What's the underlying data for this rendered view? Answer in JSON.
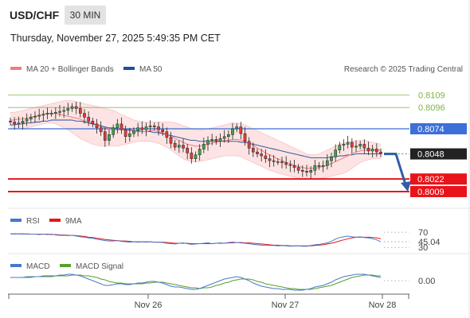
{
  "header": {
    "symbol": "USD/CHF",
    "timeframe": "30 MIN",
    "datetime": "Thursday, November 27, 2025 5:49:35 PM CET"
  },
  "legend": {
    "ma20": "MA 20 + Bollinger Bands",
    "ma50": "MA 50",
    "credit": "Research © 2025 Trading Central",
    "ma20_color": "#f47c7c",
    "ma50_color": "#1f4e9c"
  },
  "chart_data": {
    "type": "candlestick",
    "ylim": [
      0.7995,
      0.8125
    ],
    "x_ticks": [
      "Nov 26",
      "Nov 27",
      "Nov 28"
    ],
    "price_levels": [
      {
        "value": "0.8109",
        "color": "#7db446",
        "style": "text"
      },
      {
        "value": "0.8096",
        "color": "#7db446",
        "style": "text"
      },
      {
        "value": "0.8074",
        "color": "#3c6fd8",
        "style": "box"
      },
      {
        "value": "0.8048",
        "color": "#222222",
        "style": "box"
      },
      {
        "value": "0.8022",
        "color": "#e8141a",
        "style": "box"
      },
      {
        "value": "0.8009",
        "color": "#e8141a",
        "style": "box"
      }
    ],
    "current_price": 0.8048,
    "forecast_target": 0.8009,
    "close": [
      0.8081,
      0.8079,
      0.808,
      0.8082,
      0.8084,
      0.8086,
      0.8087,
      0.8088,
      0.8089,
      0.809,
      0.809,
      0.8091,
      0.8092,
      0.8093,
      0.8095,
      0.8097,
      0.8095,
      0.809,
      0.8086,
      0.8082,
      0.8079,
      0.8075,
      0.8071,
      0.8062,
      0.8068,
      0.8075,
      0.8079,
      0.8073,
      0.8066,
      0.8069,
      0.8072,
      0.8075,
      0.8073,
      0.8076,
      0.8077,
      0.8076,
      0.8073,
      0.8071,
      0.8065,
      0.8059,
      0.8055,
      0.8057,
      0.8054,
      0.8049,
      0.8043,
      0.8047,
      0.8053,
      0.8058,
      0.8062,
      0.8063,
      0.8061,
      0.8064,
      0.8066,
      0.8068,
      0.8074,
      0.8076,
      0.8069,
      0.8061,
      0.8054,
      0.805,
      0.8048,
      0.8046,
      0.8043,
      0.8041,
      0.804,
      0.804,
      0.8039,
      0.8037,
      0.8036,
      0.8034,
      0.8031,
      0.803,
      0.8029,
      0.8031,
      0.8036,
      0.8035,
      0.8036,
      0.8041,
      0.8045,
      0.8052,
      0.8057,
      0.8058,
      0.806,
      0.8055,
      0.8056,
      0.8058,
      0.8054,
      0.8051,
      0.8053,
      0.805,
      0.8048
    ],
    "ma20": [
      0.8083,
      0.8083,
      0.8084,
      0.8084,
      0.8085,
      0.8086,
      0.8087,
      0.8088,
      0.8089,
      0.809,
      0.809,
      0.809,
      0.8089,
      0.8088,
      0.8087,
      0.8086,
      0.8085,
      0.8084,
      0.8082,
      0.8081,
      0.808,
      0.8078,
      0.8076,
      0.8075,
      0.8074,
      0.8073,
      0.8073,
      0.8073,
      0.8073,
      0.8072,
      0.8072,
      0.8071,
      0.8071,
      0.8071,
      0.8072,
      0.8072,
      0.8071,
      0.807,
      0.8068,
      0.8066,
      0.8064,
      0.8062,
      0.806,
      0.8058,
      0.8057,
      0.8056,
      0.8056,
      0.8057,
      0.8058,
      0.8059,
      0.806,
      0.8061,
      0.8062,
      0.8062,
      0.8063,
      0.8063,
      0.8062,
      0.8061,
      0.8059,
      0.8057,
      0.8054,
      0.8052,
      0.8049,
      0.8047,
      0.8045,
      0.8043,
      0.8041,
      0.8039,
      0.8038,
      0.8036,
      0.8035,
      0.8034,
      0.8033,
      0.8033,
      0.8033,
      0.8034,
      0.8035,
      0.8036,
      0.8038,
      0.804,
      0.8042,
      0.8044,
      0.8046,
      0.8048,
      0.805,
      0.8051,
      0.8052,
      0.8052,
      0.8052,
      0.8052,
      0.8052
    ],
    "bb_upper": [
      0.8091,
      0.8091,
      0.8092,
      0.8093,
      0.8094,
      0.8095,
      0.8096,
      0.8097,
      0.8098,
      0.8099,
      0.81,
      0.8101,
      0.8102,
      0.8103,
      0.8103,
      0.8103,
      0.8102,
      0.8101,
      0.81,
      0.8099,
      0.8098,
      0.8097,
      0.8096,
      0.8095,
      0.8094,
      0.8093,
      0.8091,
      0.8089,
      0.8087,
      0.8085,
      0.8083,
      0.8082,
      0.8081,
      0.8081,
      0.8081,
      0.8081,
      0.8081,
      0.8081,
      0.8081,
      0.8081,
      0.808,
      0.8079,
      0.8077,
      0.8076,
      0.8074,
      0.8073,
      0.8073,
      0.8073,
      0.8074,
      0.8075,
      0.8076,
      0.8077,
      0.8078,
      0.8079,
      0.808,
      0.808,
      0.8079,
      0.8078,
      0.8076,
      0.8074,
      0.8072,
      0.807,
      0.8068,
      0.8066,
      0.8064,
      0.8062,
      0.806,
      0.8058,
      0.8056,
      0.8054,
      0.8052,
      0.805,
      0.8048,
      0.8047,
      0.8047,
      0.8048,
      0.805,
      0.8052,
      0.8054,
      0.8056,
      0.8058,
      0.8059,
      0.806,
      0.8061,
      0.8062,
      0.8062,
      0.8062,
      0.8061,
      0.806,
      0.8059,
      0.8058
    ],
    "bb_lower": [
      0.8074,
      0.8074,
      0.8074,
      0.8074,
      0.8075,
      0.8076,
      0.8077,
      0.8078,
      0.8079,
      0.808,
      0.808,
      0.8079,
      0.8077,
      0.8075,
      0.8073,
      0.807,
      0.8067,
      0.8064,
      0.8062,
      0.806,
      0.8058,
      0.8057,
      0.8056,
      0.8056,
      0.8056,
      0.8056,
      0.8056,
      0.8057,
      0.8058,
      0.8059,
      0.806,
      0.8061,
      0.8061,
      0.8061,
      0.8061,
      0.806,
      0.8059,
      0.8057,
      0.8055,
      0.8052,
      0.8049,
      0.8046,
      0.8043,
      0.8041,
      0.804,
      0.804,
      0.804,
      0.8041,
      0.8042,
      0.8043,
      0.8044,
      0.8045,
      0.8046,
      0.8046,
      0.8046,
      0.8046,
      0.8045,
      0.8043,
      0.8041,
      0.8039,
      0.8037,
      0.8035,
      0.8033,
      0.8031,
      0.803,
      0.8028,
      0.8027,
      0.8026,
      0.8025,
      0.8024,
      0.8023,
      0.8022,
      0.8022,
      0.8022,
      0.8022,
      0.8022,
      0.8023,
      0.8024,
      0.8025,
      0.8026,
      0.8027,
      0.8028,
      0.803,
      0.8033,
      0.8036,
      0.8039,
      0.8041,
      0.8042,
      0.8043,
      0.8043,
      0.8043
    ],
    "ma50": [
      0.8078,
      0.8078,
      0.8079,
      0.8079,
      0.808,
      0.808,
      0.8081,
      0.8081,
      0.8082,
      0.8082,
      0.8083,
      0.8083,
      0.8083,
      0.8083,
      0.8083,
      0.8083,
      0.8082,
      0.8082,
      0.8081,
      0.808,
      0.8079,
      0.8078,
      0.8077,
      0.8076,
      0.8075,
      0.8075,
      0.8074,
      0.8074,
      0.8073,
      0.8073,
      0.8072,
      0.8072,
      0.8071,
      0.8071,
      0.8071,
      0.807,
      0.807,
      0.8069,
      0.8068,
      0.8067,
      0.8066,
      0.8065,
      0.8064,
      0.8063,
      0.8062,
      0.8062,
      0.8061,
      0.8061,
      0.8061,
      0.8061,
      0.8061,
      0.8061,
      0.8061,
      0.8061,
      0.8061,
      0.8061,
      0.806,
      0.806,
      0.8059,
      0.8058,
      0.8057,
      0.8056,
      0.8055,
      0.8054,
      0.8053,
      0.8052,
      0.8051,
      0.805,
      0.8049,
      0.8048,
      0.8047,
      0.8046,
      0.8045,
      0.8044,
      0.8044,
      0.8044,
      0.8044,
      0.8044,
      0.8045,
      0.8045,
      0.8046,
      0.8046,
      0.8047,
      0.8047,
      0.8048,
      0.8048,
      0.8048,
      0.8048,
      0.8048,
      0.8048,
      0.8048
    ],
    "rsi": {
      "legend": [
        "RSI",
        "9MA"
      ],
      "colors": [
        "#4a78c8",
        "#e8141a"
      ],
      "levels": [
        "70",
        "45.04",
        "30"
      ],
      "last": 45.04,
      "ylim": [
        20,
        85
      ],
      "values": [
        66,
        65,
        66,
        65,
        66,
        65,
        65,
        64,
        65,
        64,
        65,
        63,
        62,
        62,
        61,
        62,
        60,
        58,
        57,
        55,
        54,
        52,
        50,
        48,
        47,
        47,
        48,
        46,
        45,
        44,
        45,
        44,
        45,
        44,
        45,
        44,
        44,
        43,
        41,
        40,
        39,
        41,
        42,
        40,
        38,
        39,
        40,
        41,
        42,
        40,
        41,
        42,
        41,
        43,
        44,
        43,
        42,
        41,
        40,
        38,
        37,
        36,
        36,
        35,
        35,
        34,
        35,
        34,
        33,
        34,
        34,
        33,
        33,
        35,
        37,
        38,
        40,
        42,
        46,
        52,
        56,
        58,
        60,
        58,
        57,
        58,
        56,
        55,
        53,
        50,
        45
      ],
      "ma": [
        66,
        66,
        66,
        66,
        65,
        65,
        65,
        65,
        65,
        65,
        64,
        64,
        63,
        63,
        62,
        62,
        61,
        60,
        59,
        57,
        56,
        54,
        53,
        51,
        50,
        49,
        48,
        47,
        47,
        46,
        45,
        45,
        45,
        45,
        45,
        44,
        44,
        44,
        43,
        42,
        41,
        41,
        41,
        41,
        40,
        40,
        40,
        40,
        40,
        40,
        41,
        41,
        41,
        42,
        42,
        43,
        43,
        42,
        42,
        41,
        40,
        39,
        38,
        37,
        36,
        36,
        35,
        35,
        34,
        34,
        34,
        34,
        34,
        34,
        35,
        36,
        37,
        39,
        41,
        44,
        47,
        50,
        53,
        55,
        57,
        57,
        57,
        57,
        56,
        55,
        53
      ]
    },
    "macd": {
      "legend": [
        "MACD",
        "MACD Signal"
      ],
      "colors": [
        "#4a78c8",
        "#5aa02c"
      ],
      "zero_label": "0.00",
      "ylim": [
        -0.0015,
        0.0011
      ],
      "values": [
        0.0004,
        0.0004,
        0.0004,
        0.0004,
        0.0005,
        0.0005,
        0.0005,
        0.0005,
        0.0006,
        0.0006,
        0.0006,
        0.0006,
        0.0007,
        0.0007,
        0.0008,
        0.0008,
        0.0007,
        0.0006,
        0.0004,
        0.0002,
        0.0,
        -0.0002,
        -0.0004,
        -0.0006,
        -0.0006,
        -0.0005,
        -0.0004,
        -0.0004,
        -0.0005,
        -0.0005,
        -0.0004,
        -0.0003,
        -0.0003,
        -0.0002,
        -0.0001,
        -0.0001,
        -0.0002,
        -0.0003,
        -0.0005,
        -0.0007,
        -0.0008,
        -0.0008,
        -0.0009,
        -0.001,
        -0.0011,
        -0.0011,
        -0.001,
        -0.0008,
        -0.0006,
        -0.0004,
        -0.0002,
        0.0,
        0.0002,
        0.0003,
        0.0004,
        0.0005,
        0.0004,
        0.0002,
        0.0,
        -0.0003,
        -0.0005,
        -0.0007,
        -0.0008,
        -0.0009,
        -0.001,
        -0.001,
        -0.0011,
        -0.0011,
        -0.0011,
        -0.0012,
        -0.0012,
        -0.0012,
        -0.0011,
        -0.001,
        -0.0008,
        -0.0007,
        -0.0006,
        -0.0004,
        -0.0002,
        0.0001,
        0.0003,
        0.0005,
        0.0006,
        0.0007,
        0.0008,
        0.0008,
        0.0008,
        0.0007,
        0.0006,
        0.0005,
        0.0004
      ],
      "signal": [
        0.0004,
        0.0004,
        0.0004,
        0.0004,
        0.0004,
        0.0004,
        0.0005,
        0.0005,
        0.0005,
        0.0005,
        0.0005,
        0.0006,
        0.0006,
        0.0006,
        0.0006,
        0.0007,
        0.0007,
        0.0007,
        0.0006,
        0.0006,
        0.0005,
        0.0004,
        0.0002,
        0.0001,
        -0.0001,
        -0.0002,
        -0.0003,
        -0.0003,
        -0.0004,
        -0.0004,
        -0.0004,
        -0.0004,
        -0.0004,
        -0.0003,
        -0.0003,
        -0.0002,
        -0.0002,
        -0.0002,
        -0.0003,
        -0.0004,
        -0.0005,
        -0.0006,
        -0.0007,
        -0.0008,
        -0.0009,
        -0.0009,
        -0.001,
        -0.0009,
        -0.0009,
        -0.0008,
        -0.0006,
        -0.0005,
        -0.0003,
        -0.0002,
        0.0,
        0.0001,
        0.0002,
        0.0002,
        0.0002,
        0.0001,
        -0.0001,
        -0.0002,
        -0.0004,
        -0.0005,
        -0.0006,
        -0.0007,
        -0.0008,
        -0.0009,
        -0.001,
        -0.001,
        -0.0011,
        -0.0011,
        -0.0011,
        -0.0011,
        -0.001,
        -0.0009,
        -0.0008,
        -0.0007,
        -0.0006,
        -0.0004,
        -0.0002,
        0.0,
        0.0002,
        0.0004,
        0.0005,
        0.0006,
        0.0007,
        0.0007,
        0.0007,
        0.0006,
        0.0006
      ]
    }
  }
}
